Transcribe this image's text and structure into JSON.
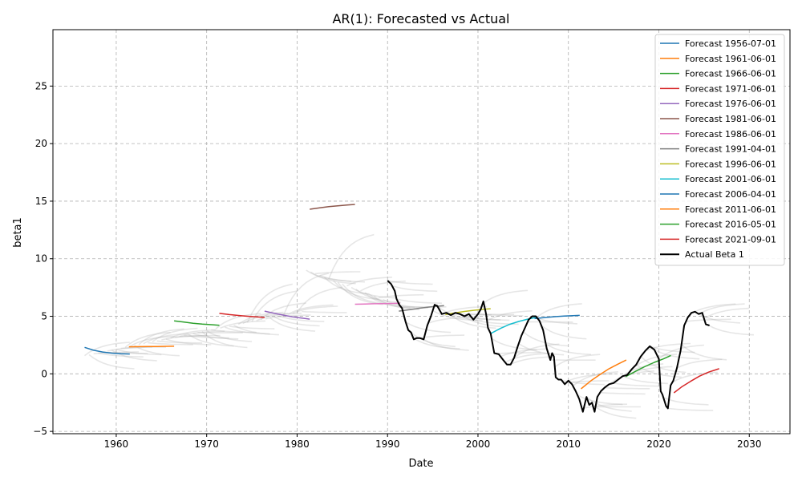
{
  "chart_data": {
    "type": "line",
    "title": "AR(1): Forecasted vs Actual",
    "xlabel": "Date",
    "ylabel": "beta1",
    "xlim": [
      1953.0,
      2034.5
    ],
    "ylim": [
      -5.2,
      29.9
    ],
    "x_ticks": [
      1960,
      1970,
      1980,
      1990,
      2000,
      2010,
      2020,
      2030
    ],
    "x_tick_labels": [
      "1960",
      "1970",
      "1980",
      "1990",
      "2000",
      "2010",
      "2020",
      "2030"
    ],
    "y_ticks": [
      -5,
      0,
      5,
      10,
      15,
      20,
      25
    ],
    "y_tick_labels": [
      "−5",
      "0",
      "5",
      "10",
      "15",
      "20",
      "25"
    ],
    "grid": true,
    "legend_position": "top-right",
    "background_forecasts_color": "#b0b0b0",
    "series": [
      {
        "name": "Forecast 1956-07-01",
        "color": "#1f77b4",
        "x": [
          1956.5,
          1957.5,
          1958.5,
          1959.5,
          1960.5,
          1961.5
        ],
        "y": [
          2.3,
          2.05,
          1.9,
          1.8,
          1.75,
          1.72
        ]
      },
      {
        "name": "Forecast 1961-06-01",
        "color": "#ff7f0e",
        "x": [
          1961.4,
          1962.5,
          1963.5,
          1964.5,
          1965.5,
          1966.4
        ],
        "y": [
          2.35,
          2.36,
          2.37,
          2.38,
          2.39,
          2.4
        ]
      },
      {
        "name": "Forecast 1966-06-01",
        "color": "#2ca02c",
        "x": [
          1966.4,
          1967.5,
          1968.5,
          1969.5,
          1970.5,
          1971.4
        ],
        "y": [
          4.6,
          4.5,
          4.4,
          4.32,
          4.27,
          4.22
        ]
      },
      {
        "name": "Forecast 1971-06-01",
        "color": "#d62728",
        "x": [
          1971.4,
          1972.5,
          1973.5,
          1974.5,
          1975.5,
          1976.4
        ],
        "y": [
          5.25,
          5.15,
          5.07,
          5.0,
          4.95,
          4.9
        ]
      },
      {
        "name": "Forecast 1976-06-01",
        "color": "#9467bd",
        "x": [
          1976.4,
          1977.5,
          1978.5,
          1979.5,
          1980.5,
          1981.4
        ],
        "y": [
          5.45,
          5.25,
          5.1,
          4.95,
          4.85,
          4.75
        ]
      },
      {
        "name": "Forecast 1981-06-01",
        "color": "#8c564b",
        "x": [
          1981.4,
          1982.5,
          1983.5,
          1984.5,
          1985.5,
          1986.4
        ],
        "y": [
          14.3,
          14.42,
          14.52,
          14.6,
          14.66,
          14.72
        ]
      },
      {
        "name": "Forecast 1986-06-01",
        "color": "#e377c2",
        "x": [
          1986.4,
          1987.5,
          1988.5,
          1989.5,
          1990.5,
          1991.4
        ],
        "y": [
          6.05,
          6.07,
          6.09,
          6.1,
          6.12,
          6.13
        ]
      },
      {
        "name": "Forecast 1991-04-01",
        "color": "#7f7f7f",
        "x": [
          1991.25,
          1992.5,
          1993.5,
          1994.5,
          1995.5,
          1996.25
        ],
        "y": [
          5.45,
          5.58,
          5.7,
          5.8,
          5.87,
          5.92
        ]
      },
      {
        "name": "Forecast 1996-06-01",
        "color": "#bcbd22",
        "x": [
          1996.4,
          1997.5,
          1998.5,
          1999.5,
          2000.5,
          2001.4
        ],
        "y": [
          5.15,
          5.3,
          5.42,
          5.52,
          5.6,
          5.66
        ]
      },
      {
        "name": "Forecast 2001-06-01",
        "color": "#17becf",
        "x": [
          2001.4,
          2002.5,
          2003.5,
          2004.5,
          2005.5,
          2006.4
        ],
        "y": [
          3.5,
          3.95,
          4.3,
          4.55,
          4.75,
          4.9
        ]
      },
      {
        "name": "Forecast 2006-04-01",
        "color": "#1f77b4",
        "x": [
          2006.25,
          2007.5,
          2008.5,
          2009.5,
          2010.5,
          2011.25
        ],
        "y": [
          4.8,
          4.9,
          4.97,
          5.02,
          5.06,
          5.08
        ]
      },
      {
        "name": "Forecast 2011-06-01",
        "color": "#ff7f0e",
        "x": [
          2011.4,
          2012.5,
          2013.5,
          2014.5,
          2015.5,
          2016.4
        ],
        "y": [
          -1.3,
          -0.6,
          -0.05,
          0.45,
          0.85,
          1.2
        ]
      },
      {
        "name": "Forecast 2016-05-01",
        "color": "#2ca02c",
        "x": [
          2016.33,
          2017.5,
          2018.5,
          2019.5,
          2020.5,
          2021.33
        ],
        "y": [
          -0.25,
          0.25,
          0.65,
          1.0,
          1.3,
          1.6
        ]
      },
      {
        "name": "Forecast 2021-09-01",
        "color": "#d62728",
        "x": [
          2021.67,
          2022.5,
          2023.5,
          2024.5,
          2025.5,
          2026.67
        ],
        "y": [
          -1.65,
          -1.15,
          -0.65,
          -0.2,
          0.15,
          0.45
        ]
      },
      {
        "name": "Actual Beta 1",
        "color": "#000000",
        "width": 2,
        "x": [
          1990.0,
          1990.4,
          1990.8,
          1991.0,
          1991.3,
          1991.6,
          1992.0,
          1992.3,
          1992.6,
          1992.9,
          1993.2,
          1993.6,
          1994.0,
          1994.4,
          1994.8,
          1995.2,
          1995.5,
          1996.0,
          1996.5,
          1997.0,
          1997.5,
          1998.0,
          1998.5,
          1999.0,
          1999.5,
          2000.0,
          2000.3,
          2000.6,
          2000.9,
          2001.1,
          2001.4,
          2001.8,
          2002.3,
          2002.8,
          2003.2,
          2003.6,
          2004.0,
          2004.4,
          2004.8,
          2005.2,
          2005.6,
          2006.0,
          2006.4,
          2006.8,
          2007.2,
          2007.6,
          2008.0,
          2008.2,
          2008.4,
          2008.6,
          2008.9,
          2009.2,
          2009.6,
          2010.0,
          2010.4,
          2010.8,
          2011.2,
          2011.6,
          2012.0,
          2012.3,
          2012.6,
          2012.9,
          2013.2,
          2013.6,
          2014.0,
          2014.5,
          2015.0,
          2015.5,
          2016.0,
          2016.5,
          2017.0,
          2017.5,
          2018.0,
          2018.5,
          2019.0,
          2019.5,
          2020.0,
          2020.2,
          2020.4,
          2020.8,
          2021.0,
          2021.3,
          2021.6,
          2022.0,
          2022.4,
          2022.8,
          2023.2,
          2023.6,
          2024.0,
          2024.4,
          2024.8,
          2025.2,
          2025.6
        ],
        "y": [
          8.1,
          7.8,
          7.2,
          6.5,
          6.0,
          5.7,
          4.5,
          3.8,
          3.6,
          3.0,
          3.1,
          3.1,
          3.0,
          4.2,
          5.0,
          6.0,
          5.9,
          5.2,
          5.3,
          5.1,
          5.3,
          5.2,
          5.0,
          5.2,
          4.7,
          5.2,
          5.6,
          6.3,
          5.2,
          4.0,
          3.5,
          1.8,
          1.7,
          1.2,
          0.8,
          0.8,
          1.4,
          2.4,
          3.3,
          4.0,
          4.7,
          5.0,
          5.0,
          4.6,
          3.8,
          2.2,
          1.2,
          1.8,
          1.5,
          -0.3,
          -0.5,
          -0.5,
          -0.9,
          -0.6,
          -0.9,
          -1.5,
          -2.2,
          -3.3,
          -2.0,
          -2.7,
          -2.5,
          -3.3,
          -2.0,
          -1.5,
          -1.2,
          -0.9,
          -0.8,
          -0.5,
          -0.2,
          -0.1,
          0.4,
          0.8,
          1.5,
          2.0,
          2.4,
          2.1,
          1.3,
          -1.5,
          -1.8,
          -2.8,
          -3.0,
          -1.0,
          -0.6,
          0.5,
          2.0,
          4.2,
          4.9,
          5.3,
          5.4,
          5.2,
          5.3,
          4.3,
          4.2
        ]
      }
    ]
  }
}
